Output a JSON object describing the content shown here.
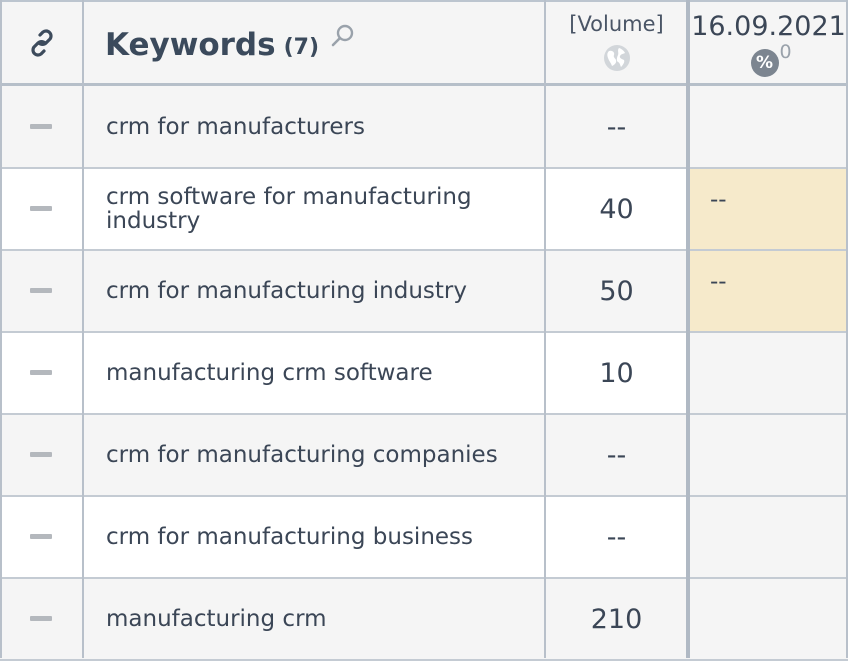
{
  "header": {
    "link_icon": "link-icon",
    "keywords_title": "Keywords",
    "keywords_count": "(7)",
    "search_icon": "search-icon",
    "volume_label": "[Volume]",
    "globe_icon": "globe-icon",
    "date": "16.09.2021",
    "percent_icon": "%",
    "percent_value": "0"
  },
  "colors": {
    "highlight": "#f6eacb",
    "text": "#3b4656",
    "grid": "#b8c0ca"
  },
  "rows": [
    {
      "keyword": "crm for manufacturers",
      "volume": "--",
      "position": "",
      "highlight": false
    },
    {
      "keyword": "crm software for manufacturing industry",
      "volume": "40",
      "position": "--",
      "highlight": true
    },
    {
      "keyword": "crm for manufacturing industry",
      "volume": "50",
      "position": "--",
      "highlight": true
    },
    {
      "keyword": "manufacturing crm software",
      "volume": "10",
      "position": "",
      "highlight": false
    },
    {
      "keyword": "crm for manufacturing companies",
      "volume": "--",
      "position": "",
      "highlight": false
    },
    {
      "keyword": "crm for manufacturing business",
      "volume": "--",
      "position": "",
      "highlight": false
    },
    {
      "keyword": "manufacturing crm",
      "volume": "210",
      "position": "",
      "highlight": false
    }
  ]
}
